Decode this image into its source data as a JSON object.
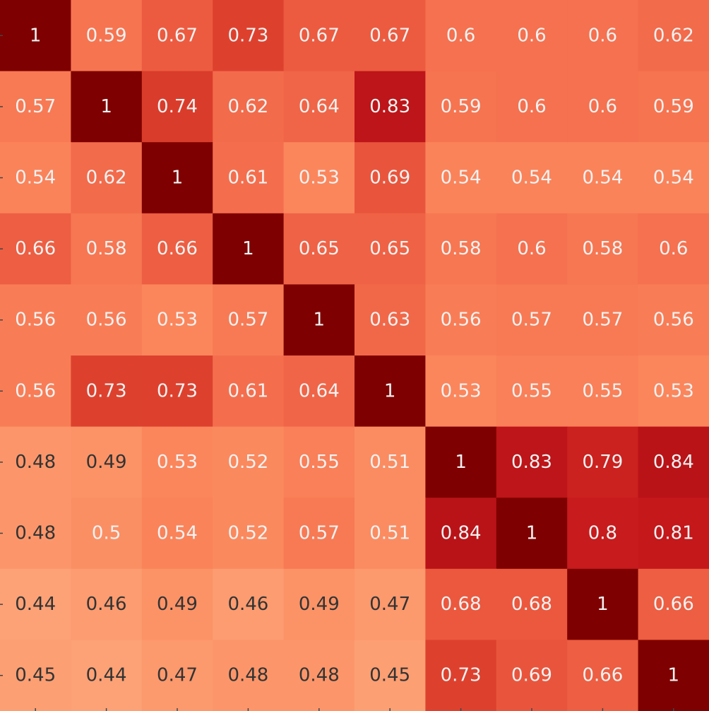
{
  "chart_data": {
    "type": "heatmap",
    "title": "",
    "xlabel": "",
    "ylabel": "",
    "colormap": "Reds",
    "vmin": 0.44,
    "vmax": 1.0,
    "grid": false,
    "legend": "none",
    "values": [
      [
        1,
        0.59,
        0.67,
        0.73,
        0.67,
        0.67,
        0.6,
        0.6,
        0.6,
        0.62
      ],
      [
        0.57,
        1,
        0.74,
        0.62,
        0.64,
        0.83,
        0.59,
        0.6,
        0.6,
        0.59
      ],
      [
        0.54,
        0.62,
        1,
        0.61,
        0.53,
        0.69,
        0.54,
        0.54,
        0.54,
        0.54
      ],
      [
        0.66,
        0.58,
        0.66,
        1,
        0.65,
        0.65,
        0.58,
        0.6,
        0.58,
        0.6
      ],
      [
        0.56,
        0.56,
        0.53,
        0.57,
        1,
        0.63,
        0.56,
        0.57,
        0.57,
        0.56
      ],
      [
        0.56,
        0.73,
        0.73,
        0.61,
        0.64,
        1,
        0.53,
        0.55,
        0.55,
        0.53
      ],
      [
        0.48,
        0.49,
        0.53,
        0.52,
        0.55,
        0.51,
        1,
        0.83,
        0.79,
        0.84
      ],
      [
        0.48,
        0.5,
        0.54,
        0.52,
        0.57,
        0.51,
        0.84,
        1,
        0.8,
        0.81
      ],
      [
        0.44,
        0.46,
        0.49,
        0.46,
        0.49,
        0.47,
        0.68,
        0.68,
        1,
        0.66
      ],
      [
        0.45,
        0.44,
        0.47,
        0.48,
        0.48,
        0.45,
        0.73,
        0.69,
        0.66,
        1
      ]
    ],
    "text_colors": {
      "light": "#f2f2f2",
      "dark": "#333333"
    }
  }
}
